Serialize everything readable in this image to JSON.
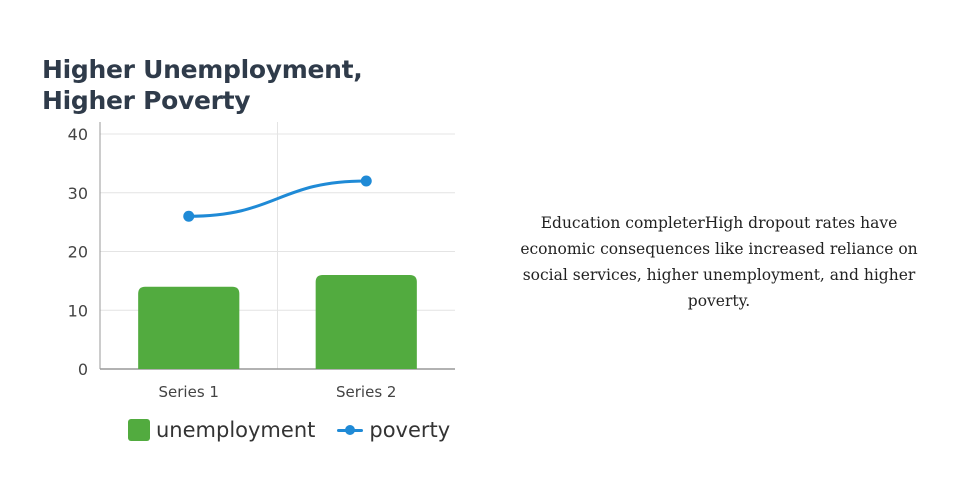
{
  "colors": {
    "bar": "#52ab3f",
    "line": "#1f8ad6",
    "grid": "#e4e4e4",
    "axis": "#999999"
  },
  "chart_data": {
    "type": "bar",
    "title": "Higher Unemployment, Higher Poverty",
    "categories": [
      "Series 1",
      "Series 2"
    ],
    "series": [
      {
        "name": "unemployment",
        "type": "bar",
        "values": [
          14,
          16
        ]
      },
      {
        "name": "poverty",
        "type": "line",
        "values": [
          26,
          32
        ]
      }
    ],
    "y_ticks": [
      0,
      10,
      20,
      30,
      40
    ],
    "ylim": [
      0,
      40
    ],
    "xlabel": "",
    "ylabel": "",
    "grid": true,
    "legend_position": "bottom"
  },
  "description": "Education completerHigh dropout rates have economic consequences like increased reliance on social services, higher unemployment, and higher poverty."
}
